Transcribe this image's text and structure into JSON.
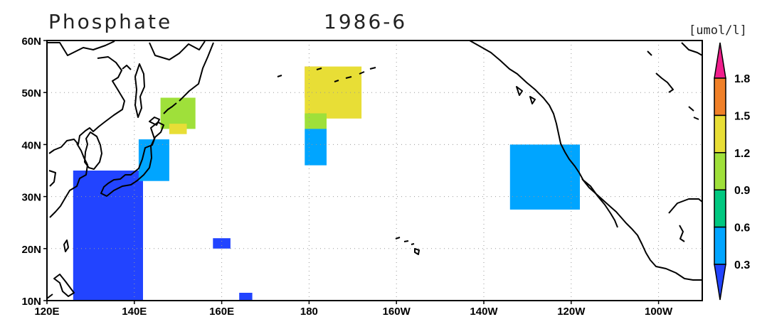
{
  "header": {
    "variable": "Phosphate",
    "period": "1986-6",
    "units": "[umol/l]"
  },
  "map": {
    "projection": "equirectangular",
    "lon_range": [
      120,
      270
    ],
    "lat_range": [
      10,
      60
    ],
    "grid": "dotted",
    "x_ticks": [
      {
        "lon": 120,
        "label": "120E"
      },
      {
        "lon": 140,
        "label": "140E"
      },
      {
        "lon": 160,
        "label": "160E"
      },
      {
        "lon": 180,
        "label": "180"
      },
      {
        "lon": 200,
        "label": "160W"
      },
      {
        "lon": 220,
        "label": "140W"
      },
      {
        "lon": 240,
        "label": "120W"
      },
      {
        "lon": 260,
        "label": "100W"
      }
    ],
    "y_ticks": [
      {
        "lat": 60,
        "label": "60N"
      },
      {
        "lat": 50,
        "label": "50N"
      },
      {
        "lat": 40,
        "label": "40N"
      },
      {
        "lat": 30,
        "label": "30N"
      },
      {
        "lat": 20,
        "label": "20N"
      },
      {
        "lat": 10,
        "label": "10N"
      }
    ]
  },
  "colorbar": {
    "ticks": [
      "1.8",
      "1.5",
      "1.2",
      "0.9",
      "0.6",
      "0.3"
    ],
    "colors": [
      {
        "range": "<0.3",
        "color": "#2244ff"
      },
      {
        "range": "0.3-0.6",
        "color": "#00a5ff"
      },
      {
        "range": "0.6-0.9",
        "color": "#00c880"
      },
      {
        "range": "0.9-1.2",
        "color": "#9fe03a"
      },
      {
        "range": "1.2-1.5",
        "color": "#e8de36"
      },
      {
        "range": "1.5-1.8",
        "color": "#f08028"
      },
      {
        "range": ">1.8",
        "color": "#f01e8c"
      }
    ]
  },
  "chart_data": {
    "type": "heatmap",
    "title": "Phosphate 1986-6",
    "units": "[umol/l]",
    "lon_range": [
      120,
      270
    ],
    "lat_range": [
      10,
      60
    ],
    "levels": [
      0.3,
      0.6,
      0.9,
      1.2,
      1.5,
      1.8
    ],
    "regions": [
      {
        "name": "western-subtropical-pacific",
        "value_class": "<0.3",
        "lon": [
          126,
          142
        ],
        "lat": [
          10,
          35
        ]
      },
      {
        "name": "off-japan-east",
        "value_class": "0.3-0.6",
        "lon": [
          141,
          148
        ],
        "lat": [
          33,
          41
        ]
      },
      {
        "name": "kuril-oyashio",
        "value_class": "0.9-1.2",
        "lon": [
          146,
          154
        ],
        "lat": [
          43,
          49
        ]
      },
      {
        "name": "kuril-oyashio-edge",
        "value_class": "1.2-1.5",
        "lon": [
          148,
          152
        ],
        "lat": [
          42,
          44
        ]
      },
      {
        "name": "small-patch-160E",
        "value_class": "<0.3",
        "lon": [
          158,
          162
        ],
        "lat": [
          20,
          22
        ]
      },
      {
        "name": "small-patch-165E",
        "value_class": "<0.3",
        "lon": [
          164,
          167
        ],
        "lat": [
          10,
          11.5
        ]
      },
      {
        "name": "dateline-north",
        "value_class": "1.5-1.8",
        "lon": [
          179,
          183
        ],
        "lat": [
          49,
          55
        ]
      },
      {
        "name": "dateline-upper",
        "value_class": "1.2-1.5",
        "lon": [
          179,
          192
        ],
        "lat": [
          45,
          55
        ]
      },
      {
        "name": "dateline-mid",
        "value_class": "0.9-1.2",
        "lon": [
          179,
          184
        ],
        "lat": [
          43,
          46
        ]
      },
      {
        "name": "dateline-south",
        "value_class": "0.3-0.6",
        "lon": [
          179,
          184
        ],
        "lat": [
          36,
          43
        ]
      },
      {
        "name": "california-current",
        "value_class": "0.3-0.6",
        "lon": [
          226,
          242
        ],
        "lat": [
          27.5,
          40
        ]
      }
    ]
  }
}
